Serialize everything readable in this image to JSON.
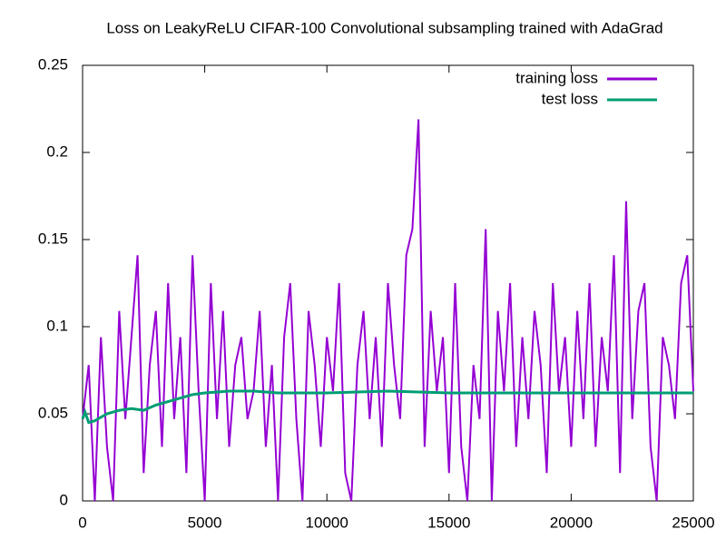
{
  "chart_data": {
    "type": "line",
    "title": "Loss on LeakyReLU CIFAR-100 Convolutional subsampling trained with AdaGrad",
    "xlim": [
      0,
      25000
    ],
    "xticks": [
      0,
      5000,
      10000,
      15000,
      20000,
      25000
    ],
    "ylim": [
      0,
      0.25
    ],
    "yticks": [
      0,
      0.05,
      0.1,
      0.15,
      0.2,
      0.25
    ],
    "grid": false,
    "legend": "top-right",
    "series": [
      {
        "name": "training loss",
        "color": "#9400d3",
        "x": [
          0,
          250,
          500,
          750,
          1000,
          1250,
          1500,
          1750,
          2000,
          2250,
          2500,
          2750,
          3000,
          3250,
          3500,
          3750,
          4000,
          4250,
          4500,
          4750,
          5000,
          5250,
          5500,
          5750,
          6000,
          6250,
          6500,
          6750,
          7000,
          7250,
          7500,
          7750,
          8000,
          8250,
          8500,
          8750,
          9000,
          9250,
          9500,
          9750,
          10000,
          10250,
          10500,
          10750,
          11000,
          11250,
          11500,
          11750,
          12000,
          12250,
          12500,
          12750,
          13000,
          13250,
          13500,
          13750,
          14000,
          14250,
          14500,
          14750,
          15000,
          15250,
          15500,
          15750,
          16000,
          16250,
          16500,
          16750,
          17000,
          17250,
          17500,
          17750,
          18000,
          18250,
          18500,
          18750,
          19000,
          19250,
          19500,
          19750,
          20000,
          20250,
          20500,
          20750,
          21000,
          21250,
          21500,
          21750,
          22000,
          22250,
          22500,
          22750,
          23000,
          23250,
          23500,
          23750,
          24000,
          24250,
          24500,
          24750,
          25000
        ],
        "values": [
          0.047,
          0.078,
          0,
          0.094,
          0.031,
          0,
          0.109,
          0.047,
          0.094,
          0.141,
          0.016,
          0.078,
          0.109,
          0.031,
          0.125,
          0.047,
          0.094,
          0.016,
          0.141,
          0.063,
          0,
          0.125,
          0.047,
          0.109,
          0.031,
          0.078,
          0.094,
          0.047,
          0.063,
          0.109,
          0.031,
          0.078,
          0,
          0.094,
          0.125,
          0.047,
          0,
          0.109,
          0.078,
          0.031,
          0.094,
          0.063,
          0.125,
          0.016,
          0,
          0.078,
          0.109,
          0.047,
          0.094,
          0.031,
          0.125,
          0.078,
          0.047,
          0.141,
          0.156,
          0.219,
          0.031,
          0.109,
          0.063,
          0.094,
          0.016,
          0.125,
          0.031,
          0,
          0.078,
          0.047,
          0.156,
          0,
          0.109,
          0.063,
          0.125,
          0.031,
          0.094,
          0.047,
          0.109,
          0.078,
          0.016,
          0.125,
          0.063,
          0.094,
          0.031,
          0.109,
          0.047,
          0.125,
          0.031,
          0.094,
          0.063,
          0.141,
          0.016,
          0.172,
          0.047,
          0.109,
          0.125,
          0.031,
          0,
          0.094,
          0.078,
          0.047,
          0.125,
          0.141,
          0.063
        ]
      },
      {
        "name": "test loss",
        "color": "#009e73",
        "x": [
          0,
          100,
          250,
          500,
          750,
          1000,
          1250,
          1500,
          2000,
          2500,
          3000,
          3500,
          4000,
          4500,
          5000,
          6000,
          7000,
          8000,
          10000,
          12500,
          15000,
          17500,
          20000,
          22500,
          25000
        ],
        "values": [
          0.047,
          0.051,
          0.045,
          0.046,
          0.048,
          0.05,
          0.051,
          0.052,
          0.053,
          0.052,
          0.055,
          0.057,
          0.059,
          0.061,
          0.062,
          0.063,
          0.063,
          0.062,
          0.062,
          0.063,
          0.062,
          0.062,
          0.062,
          0.062,
          0.062
        ]
      }
    ]
  }
}
